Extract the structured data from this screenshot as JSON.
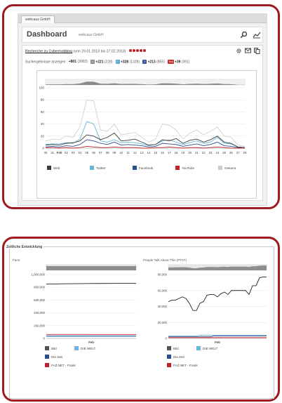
{
  "top": {
    "tab_label": "webcaus GmbH",
    "dashboard_title": "Dashboard",
    "dashboard_subtitle": "webcaus GmbH",
    "search_link": "Recherche zu Cybermobbing",
    "date_range": "(von 29.01.2013 bis 27.02.2013)",
    "stats_label": "Suchergebnisse anzeigen :",
    "stats": [
      {
        "value": "+801",
        "count": "(3002)",
        "icon": "web-icon"
      },
      {
        "value": "+221",
        "count": "(228)",
        "icon": "twitter-bird-icon"
      },
      {
        "value": "+328",
        "count": "(1328)",
        "icon": "twitter-icon"
      },
      {
        "value": "+213",
        "count": "(855)",
        "icon": "facebook-icon"
      },
      {
        "value": "+39",
        "count": "(391)",
        "icon": "youtube-icon"
      }
    ],
    "colors": {
      "accent": "#9e1b20",
      "web": "#3b3b3b",
      "twitter": "#6ab4d8",
      "facebook": "#2c4d8f",
      "youtube": "#c0242b",
      "gesamt": "#cccccc"
    }
  },
  "chart_data": [
    {
      "type": "line",
      "title": "",
      "x": [
        "30",
        "31",
        "Feb",
        "02",
        "03",
        "04",
        "05",
        "06",
        "07",
        "08",
        "09",
        "10",
        "11",
        "12",
        "13",
        "14",
        "15",
        "16",
        "17",
        "18",
        "19",
        "20",
        "21",
        "22",
        "23",
        "24",
        "25",
        "26",
        "27",
        "28"
      ],
      "ylim": [
        0,
        100
      ],
      "yticks": [
        0,
        20,
        40,
        60,
        80,
        100
      ],
      "legend": [
        "Web",
        "Twitter",
        "Facebook",
        "YouTube",
        "Gesamt"
      ],
      "series": [
        {
          "name": "Gesamt",
          "values": [
            12,
            15,
            14,
            20,
            18,
            35,
            80,
            78,
            30,
            28,
            40,
            22,
            24,
            26,
            18,
            10,
            15,
            40,
            38,
            30,
            15,
            25,
            30,
            22,
            28,
            35,
            20,
            18,
            5,
            3
          ]
        },
        {
          "name": "Twitter",
          "values": [
            6,
            7,
            7,
            9,
            8,
            15,
            44,
            40,
            12,
            10,
            14,
            9,
            10,
            9,
            7,
            4,
            6,
            12,
            14,
            10,
            6,
            9,
            12,
            8,
            10,
            18,
            8,
            7,
            2,
            1
          ]
        },
        {
          "name": "Web",
          "values": [
            5,
            6,
            5,
            8,
            9,
            12,
            22,
            20,
            14,
            18,
            25,
            12,
            13,
            15,
            10,
            5,
            6,
            14,
            12,
            16,
            8,
            13,
            15,
            10,
            14,
            20,
            10,
            8,
            2,
            1
          ]
        },
        {
          "name": "Facebook",
          "values": [
            2,
            3,
            2,
            4,
            3,
            6,
            14,
            12,
            8,
            6,
            10,
            5,
            6,
            5,
            4,
            2,
            3,
            8,
            7,
            6,
            3,
            5,
            7,
            4,
            6,
            10,
            4,
            3,
            1,
            0
          ]
        },
        {
          "name": "YouTube",
          "values": [
            1,
            1,
            0,
            1,
            0,
            1,
            3,
            2,
            1,
            1,
            2,
            1,
            1,
            1,
            0,
            0,
            1,
            1,
            2,
            1,
            0,
            1,
            1,
            0,
            1,
            2,
            1,
            0,
            0,
            0
          ]
        }
      ]
    },
    {
      "type": "line",
      "title": "Fans",
      "xlabel": "Feb",
      "ylim": [
        0,
        1000000
      ],
      "yticks": [
        "0",
        "200,000",
        "400,000",
        "600,000",
        "800,000",
        "1,000,000"
      ],
      "legend": [
        "Bild",
        "DIE WELT",
        "Die Zeit",
        "FAZ.NET - Frank"
      ],
      "series": [
        {
          "name": "Bild",
          "values": [
            850000,
            855000,
            858000,
            860000,
            862000,
            862000
          ]
        },
        {
          "name": "FAZ.NET - Frank",
          "values": [
            62000,
            62000,
            63000,
            63000,
            63000,
            63000
          ]
        },
        {
          "name": "Die Zeit",
          "values": [
            40000,
            40000,
            41000,
            41000,
            41000,
            41000
          ]
        },
        {
          "name": "DIE WELT",
          "values": [
            30000,
            30000,
            30000,
            31000,
            31000,
            31000
          ]
        }
      ]
    },
    {
      "type": "line",
      "title": "People Talk About This (PTAT)",
      "xlabel": "Feb",
      "ylim": [
        0,
        80000
      ],
      "yticks": [
        "0",
        "20,000",
        "40,000",
        "60,000",
        "80,000"
      ],
      "legend": [
        "Bild",
        "DIE WELT",
        "Die Zeit",
        "FAZ.NET - Frank"
      ],
      "series": [
        {
          "name": "Bild",
          "values": [
            46000,
            48000,
            48000,
            50000,
            52000,
            50000,
            44000,
            35000,
            35000,
            44000,
            46000,
            54000,
            55000,
            55000,
            52000,
            56000,
            58000,
            55000,
            60000,
            60000,
            60000,
            60000,
            60000,
            55000,
            66000,
            66000,
            76000,
            77000,
            77000
          ]
        },
        {
          "name": "DIE WELT",
          "values": [
            3000,
            3000,
            3000,
            3000,
            3000,
            3000,
            3000,
            3000,
            3000,
            4000,
            4000,
            4000,
            4000,
            4000,
            4000,
            4000,
            4000,
            4000,
            4000,
            4000,
            4000,
            4000,
            4000,
            4000,
            4000,
            4000,
            4000,
            4000,
            4000
          ]
        },
        {
          "name": "Die Zeit",
          "values": [
            2000,
            2000,
            2000,
            2000,
            2000,
            2000,
            2000,
            2000,
            2000,
            2000,
            2000,
            2000,
            2000,
            3000,
            3000,
            3000,
            3000,
            3000,
            3000,
            3000,
            3000,
            3000,
            3000,
            3000,
            3000,
            3000,
            3000,
            3000,
            3000
          ]
        },
        {
          "name": "FAZ.NET - Frank",
          "values": [
            1000,
            1000,
            1000,
            1000,
            1000,
            1000,
            1000,
            1000,
            1000,
            1000,
            1000,
            1000,
            1000,
            1000,
            1000,
            1000,
            1000,
            1000,
            1000,
            1000,
            1000,
            1000,
            1000,
            1000,
            1000,
            1000,
            1000,
            1000,
            1000
          ]
        }
      ]
    }
  ],
  "bottom": {
    "section_title": "Zeitliche Entwicklung",
    "fans_title": "Fans",
    "ptat_title": "People Talk About This (PTAT)",
    "x_label": "Feb",
    "colors": {
      "bild": "#555555",
      "welt": "#6ab4d8",
      "zeit": "#2c4d8f",
      "faz": "#c0242b"
    }
  }
}
